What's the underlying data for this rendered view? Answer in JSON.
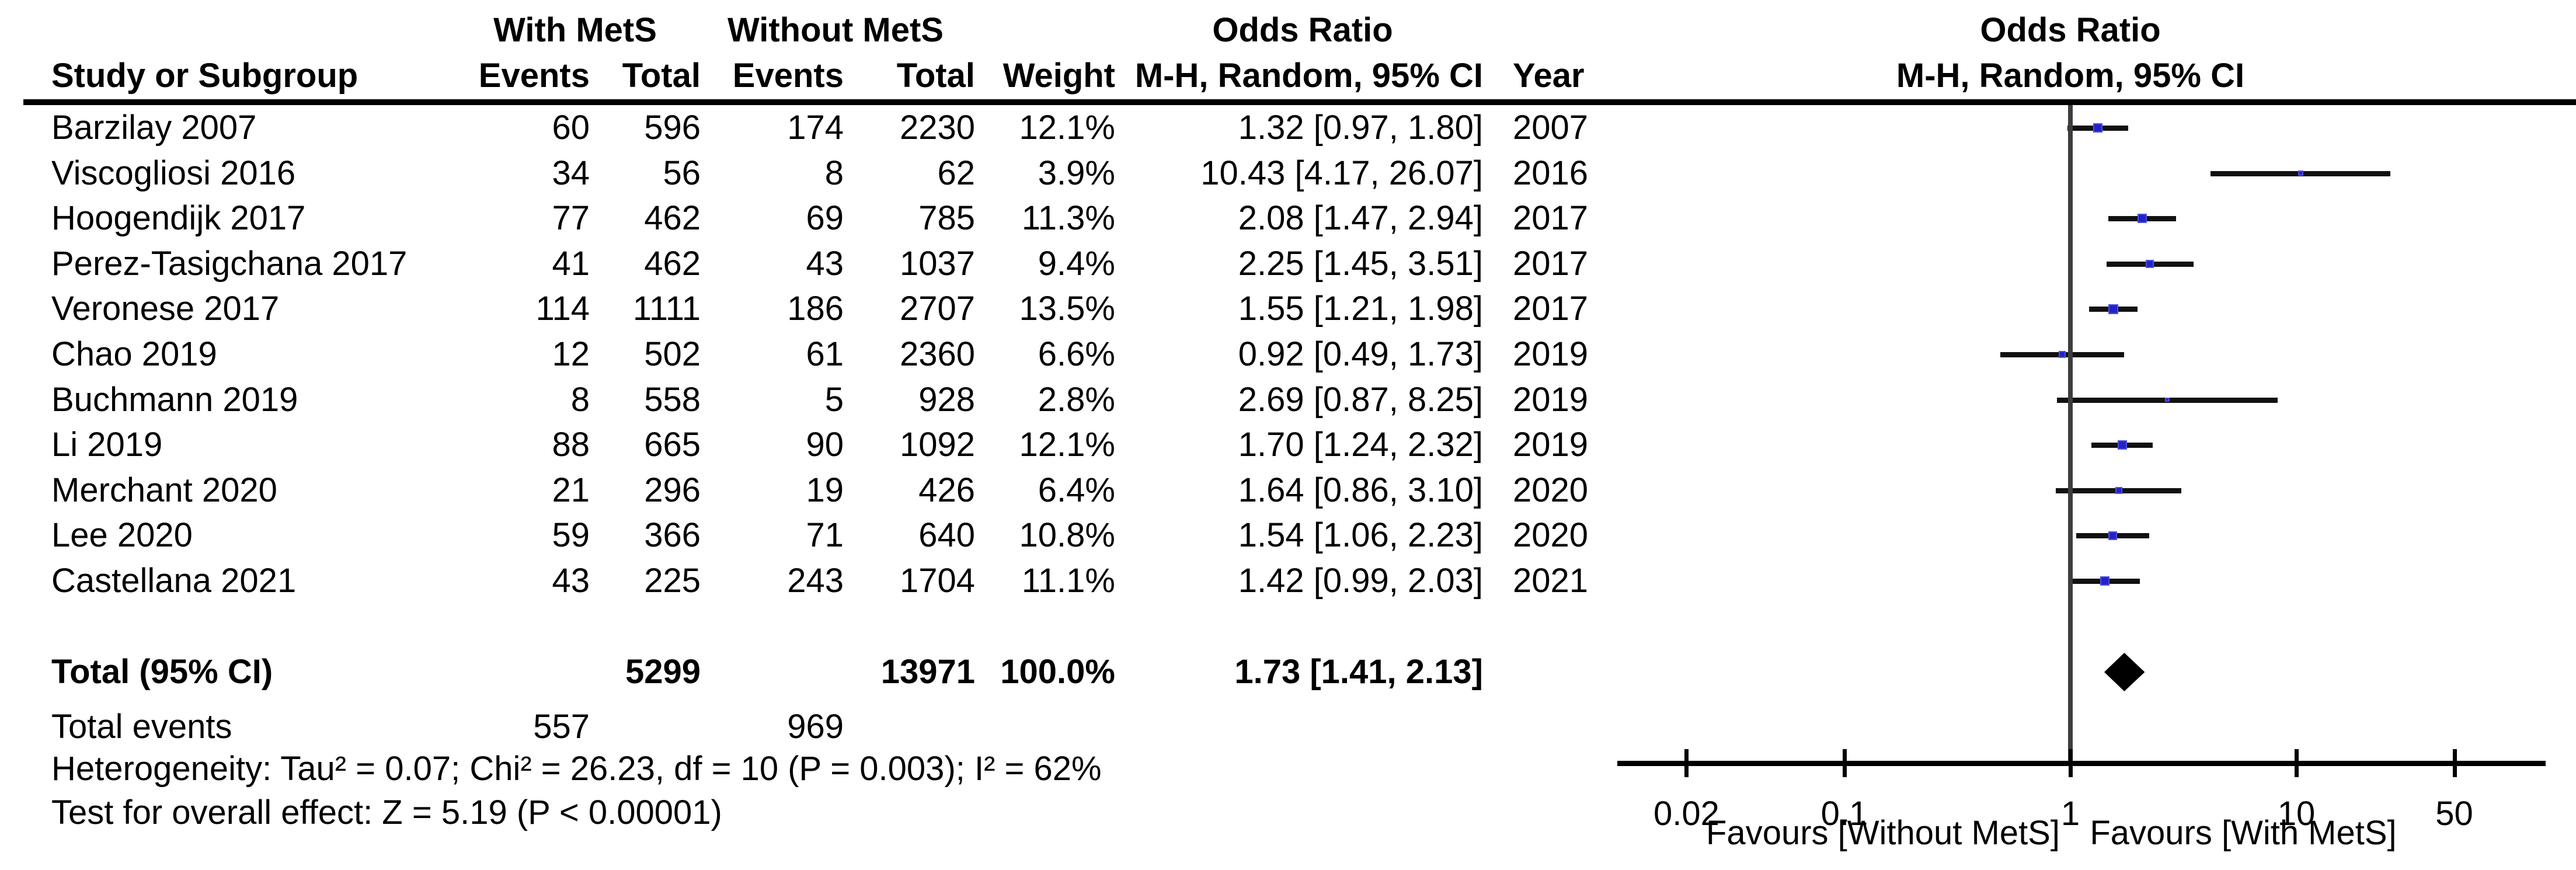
{
  "header": {
    "group1": "With MetS",
    "group2": "Without MetS",
    "study_col": "Study or Subgroup",
    "events_col1": "Events",
    "total_col1": "Total",
    "events_col2": "Events",
    "total_col2": "Total",
    "weight_col": "Weight",
    "or_title": "Odds Ratio",
    "or_sub": "M-H, Random, 95% CI",
    "year_col": "Year",
    "plot_title": "Odds Ratio",
    "plot_sub": "M-H, Random, 95% CI"
  },
  "rows": [
    {
      "study": "Barzilay 2007",
      "e1": "60",
      "t1": "596",
      "e2": "174",
      "t2": "2230",
      "weight": "12.1%",
      "or_ci": "1.32 [0.97, 1.80]",
      "year": "2007",
      "or": 1.32,
      "lo": 0.97,
      "hi": 1.8,
      "w": 12.1
    },
    {
      "study": "Viscogliosi 2016",
      "e1": "34",
      "t1": "56",
      "e2": "8",
      "t2": "62",
      "weight": "3.9%",
      "or_ci": "10.43 [4.17, 26.07]",
      "year": "2016",
      "or": 10.43,
      "lo": 4.17,
      "hi": 26.07,
      "w": 3.9
    },
    {
      "study": "Hoogendijk 2017",
      "e1": "77",
      "t1": "462",
      "e2": "69",
      "t2": "785",
      "weight": "11.3%",
      "or_ci": "2.08 [1.47, 2.94]",
      "year": "2017",
      "or": 2.08,
      "lo": 1.47,
      "hi": 2.94,
      "w": 11.3
    },
    {
      "study": "Perez-Tasigchana 2017",
      "e1": "41",
      "t1": "462",
      "e2": "43",
      "t2": "1037",
      "weight": "9.4%",
      "or_ci": "2.25 [1.45, 3.51]",
      "year": "2017",
      "or": 2.25,
      "lo": 1.45,
      "hi": 3.51,
      "w": 9.4
    },
    {
      "study": "Veronese 2017",
      "e1": "114",
      "t1": "1111",
      "e2": "186",
      "t2": "2707",
      "weight": "13.5%",
      "or_ci": "1.55 [1.21, 1.98]",
      "year": "2017",
      "or": 1.55,
      "lo": 1.21,
      "hi": 1.98,
      "w": 13.5
    },
    {
      "study": "Chao 2019",
      "e1": "12",
      "t1": "502",
      "e2": "61",
      "t2": "2360",
      "weight": "6.6%",
      "or_ci": "0.92 [0.49, 1.73]",
      "year": "2019",
      "or": 0.92,
      "lo": 0.49,
      "hi": 1.73,
      "w": 6.6
    },
    {
      "study": "Buchmann 2019",
      "e1": "8",
      "t1": "558",
      "e2": "5",
      "t2": "928",
      "weight": "2.8%",
      "or_ci": "2.69 [0.87, 8.25]",
      "year": "2019",
      "or": 2.69,
      "lo": 0.87,
      "hi": 8.25,
      "w": 2.8
    },
    {
      "study": "Li 2019",
      "e1": "88",
      "t1": "665",
      "e2": "90",
      "t2": "1092",
      "weight": "12.1%",
      "or_ci": "1.70 [1.24, 2.32]",
      "year": "2019",
      "or": 1.7,
      "lo": 1.24,
      "hi": 2.32,
      "w": 12.1
    },
    {
      "study": "Merchant 2020",
      "e1": "21",
      "t1": "296",
      "e2": "19",
      "t2": "426",
      "weight": "6.4%",
      "or_ci": "1.64 [0.86, 3.10]",
      "year": "2020",
      "or": 1.64,
      "lo": 0.86,
      "hi": 3.1,
      "w": 6.4
    },
    {
      "study": "Lee 2020",
      "e1": "59",
      "t1": "366",
      "e2": "71",
      "t2": "640",
      "weight": "10.8%",
      "or_ci": "1.54 [1.06, 2.23]",
      "year": "2020",
      "or": 1.54,
      "lo": 1.06,
      "hi": 2.23,
      "w": 10.8
    },
    {
      "study": "Castellana 2021",
      "e1": "43",
      "t1": "225",
      "e2": "243",
      "t2": "1704",
      "weight": "11.1%",
      "or_ci": "1.42 [0.99, 2.03]",
      "year": "2021",
      "or": 1.42,
      "lo": 0.99,
      "hi": 2.03,
      "w": 11.1
    }
  ],
  "totals": {
    "label": "Total (95% CI)",
    "t1": "5299",
    "t2": "13971",
    "weight": "100.0%",
    "or_ci": "1.73 [1.41, 2.13]",
    "or": 1.73,
    "lo": 1.41,
    "hi": 2.13
  },
  "total_events": {
    "label": "Total events",
    "e1": "557",
    "e2": "969"
  },
  "footer": {
    "heterogeneity": "Heterogeneity: Tau² = 0.07; Chi² = 26.23, df = 10 (P = 0.003); I² = 62%",
    "overall_effect": "Test for overall effect: Z = 5.19 (P < 0.00001)"
  },
  "axis": {
    "tick_labels": [
      "0.02",
      "0.1",
      "1",
      "10",
      "50"
    ],
    "tick_values": [
      0.02,
      0.1,
      1,
      10,
      50
    ],
    "favours_left": "Favours [Without MetS]",
    "favours_right": "Favours [With MetS]"
  },
  "colors": {
    "square_fill": "#2222CC",
    "square_border": "#5050D8",
    "ci_line": "#111111",
    "diamond": "#000000",
    "center_line": "#3d3d3d",
    "axis": "#000000",
    "text": "#000000"
  },
  "chart_data": {
    "type": "scatter",
    "subtype": "forest-plot-meta-analysis",
    "title": "Odds Ratio",
    "subtitle": "M-H, Random, 95% CI",
    "x_scale": "log10",
    "x_ticks": [
      0.02,
      0.1,
      1,
      10,
      50
    ],
    "null_line": 1,
    "xlabel_left": "Favours [Without MetS]",
    "xlabel_right": "Favours [With MetS]",
    "studies": [
      {
        "name": "Barzilay 2007",
        "events_with": 60,
        "total_with": 596,
        "events_without": 174,
        "total_without": 2230,
        "weight_pct": 12.1,
        "or": 1.32,
        "ci_low": 0.97,
        "ci_high": 1.8,
        "year": 2007
      },
      {
        "name": "Viscogliosi 2016",
        "events_with": 34,
        "total_with": 56,
        "events_without": 8,
        "total_without": 62,
        "weight_pct": 3.9,
        "or": 10.43,
        "ci_low": 4.17,
        "ci_high": 26.07,
        "year": 2016
      },
      {
        "name": "Hoogendijk 2017",
        "events_with": 77,
        "total_with": 462,
        "events_without": 69,
        "total_without": 785,
        "weight_pct": 11.3,
        "or": 2.08,
        "ci_low": 1.47,
        "ci_high": 2.94,
        "year": 2017
      },
      {
        "name": "Perez-Tasigchana 2017",
        "events_with": 41,
        "total_with": 462,
        "events_without": 43,
        "total_without": 1037,
        "weight_pct": 9.4,
        "or": 2.25,
        "ci_low": 1.45,
        "ci_high": 3.51,
        "year": 2017
      },
      {
        "name": "Veronese 2017",
        "events_with": 114,
        "total_with": 1111,
        "events_without": 186,
        "total_without": 2707,
        "weight_pct": 13.5,
        "or": 1.55,
        "ci_low": 1.21,
        "ci_high": 1.98,
        "year": 2017
      },
      {
        "name": "Chao 2019",
        "events_with": 12,
        "total_with": 502,
        "events_without": 61,
        "total_without": 2360,
        "weight_pct": 6.6,
        "or": 0.92,
        "ci_low": 0.49,
        "ci_high": 1.73,
        "year": 2019
      },
      {
        "name": "Buchmann 2019",
        "events_with": 8,
        "total_with": 558,
        "events_without": 5,
        "total_without": 928,
        "weight_pct": 2.8,
        "or": 2.69,
        "ci_low": 0.87,
        "ci_high": 8.25,
        "year": 2019
      },
      {
        "name": "Li 2019",
        "events_with": 88,
        "total_with": 665,
        "events_without": 90,
        "total_without": 1092,
        "weight_pct": 12.1,
        "or": 1.7,
        "ci_low": 1.24,
        "ci_high": 2.32,
        "year": 2019
      },
      {
        "name": "Merchant 2020",
        "events_with": 21,
        "total_with": 296,
        "events_without": 19,
        "total_without": 426,
        "weight_pct": 6.4,
        "or": 1.64,
        "ci_low": 0.86,
        "ci_high": 3.1,
        "year": 2020
      },
      {
        "name": "Lee 2020",
        "events_with": 59,
        "total_with": 366,
        "events_without": 71,
        "total_without": 640,
        "weight_pct": 10.8,
        "or": 1.54,
        "ci_low": 1.06,
        "ci_high": 2.23,
        "year": 2020
      },
      {
        "name": "Castellana 2021",
        "events_with": 43,
        "total_with": 225,
        "events_without": 243,
        "total_without": 1704,
        "weight_pct": 11.1,
        "or": 1.42,
        "ci_low": 0.99,
        "ci_high": 2.03,
        "year": 2021
      }
    ],
    "pooled": {
      "label": "Total (95% CI)",
      "total_with": 5299,
      "total_without": 13971,
      "weight_pct": 100.0,
      "or": 1.73,
      "ci_low": 1.41,
      "ci_high": 2.13
    },
    "total_events": {
      "with_mets": 557,
      "without_mets": 969
    },
    "heterogeneity": {
      "tau2": 0.07,
      "chi2": 26.23,
      "df": 10,
      "p": 0.003,
      "i2_pct": 62
    },
    "overall_effect": {
      "z": 5.19,
      "p": "< 0.00001"
    }
  }
}
